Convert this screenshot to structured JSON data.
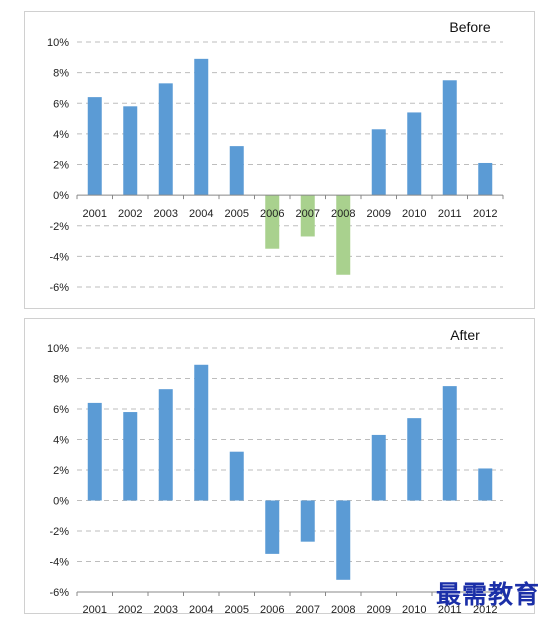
{
  "chart_data": [
    {
      "type": "bar",
      "title": "Before",
      "categories": [
        "2001",
        "2002",
        "2003",
        "2004",
        "2005",
        "2006",
        "2007",
        "2008",
        "2009",
        "2010",
        "2011",
        "2012"
      ],
      "values": [
        6.4,
        5.8,
        7.3,
        8.9,
        3.2,
        -3.5,
        -2.7,
        -5.2,
        4.3,
        5.4,
        7.5,
        2.1
      ],
      "ylim": [
        -6,
        10
      ],
      "yticks": [
        "10%",
        "8%",
        "6%",
        "4%",
        "2%",
        "0%",
        "-2%",
        "-4%",
        "-6%"
      ],
      "ytick_values": [
        10,
        8,
        6,
        4,
        2,
        0,
        -2,
        -4,
        -6
      ],
      "category_axis_position": "at-zero",
      "grid": "dashed-horizontal",
      "colors": {
        "positive": "#5b9bd5",
        "negative": "#a9d18e"
      }
    },
    {
      "type": "bar",
      "title": "After",
      "categories": [
        "2001",
        "2002",
        "2003",
        "2004",
        "2005",
        "2006",
        "2007",
        "2008",
        "2009",
        "2010",
        "2011",
        "2012"
      ],
      "values": [
        6.4,
        5.8,
        7.3,
        8.9,
        3.2,
        -3.5,
        -2.7,
        -5.2,
        4.3,
        5.4,
        7.5,
        2.1
      ],
      "ylim": [
        -6,
        10
      ],
      "yticks": [
        "10%",
        "8%",
        "6%",
        "4%",
        "2%",
        "0%",
        "-2%",
        "-4%",
        "-6%"
      ],
      "ytick_values": [
        10,
        8,
        6,
        4,
        2,
        0,
        -2,
        -4,
        -6
      ],
      "category_axis_position": "bottom",
      "grid": "dashed-horizontal",
      "colors": {
        "positive": "#5b9bd5",
        "negative": "#5b9bd5"
      }
    }
  ],
  "watermark": "最需教育"
}
